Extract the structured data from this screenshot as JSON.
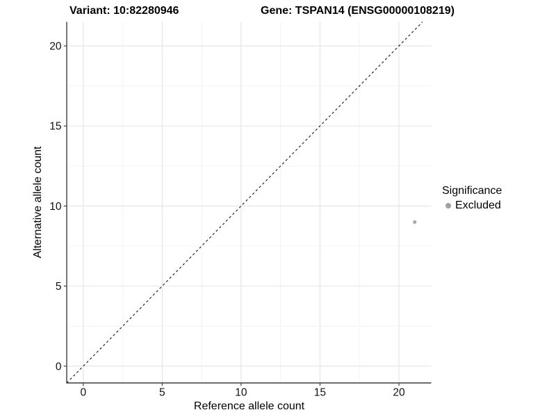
{
  "page": {
    "background": "#ffffff"
  },
  "chart_data": {
    "type": "scatter",
    "titles": [
      "Variant: 10:82280946",
      "Gene: TSPAN14 (ENSG00000108219)"
    ],
    "xlabel": "Reference allele count",
    "ylabel": "Alternative allele count",
    "xlim": [
      -1.05,
      22.05
    ],
    "ylim": [
      -1.05,
      21.5
    ],
    "xticks": [
      0,
      5,
      10,
      15,
      20
    ],
    "yticks": [
      0,
      5,
      10,
      15,
      20
    ],
    "minor_tick_step": 2.5,
    "grid": true,
    "points": [
      {
        "x": 21,
        "y": 9,
        "series": "Excluded"
      }
    ],
    "identity_line": {
      "equation": "y = x",
      "style": "dashed",
      "color": "#141414"
    },
    "legend": {
      "title": "Significance",
      "position": "right",
      "items": [
        {
          "label": "Excluded",
          "color": "#a0a0a0"
        }
      ]
    },
    "colors": {
      "point": "#a9a9a9",
      "grid_major": "#e3e3e3",
      "grid_minor": "#f0f0f0",
      "axis_line": "#3c3c3c",
      "tick_label": "#111111"
    }
  }
}
